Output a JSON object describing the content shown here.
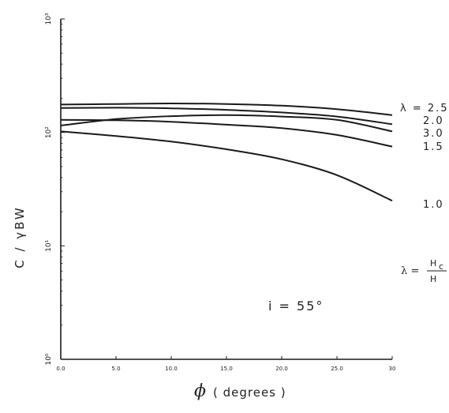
{
  "chart_data": {
    "type": "line",
    "xlabel_symbol": "ϕ",
    "xlabel_text": "( degrees )",
    "ylabel": "C / γBW",
    "y_scale": "log",
    "ylim": [
      1,
      1000
    ],
    "xlim": [
      0,
      30
    ],
    "x_ticks": [
      0,
      5,
      10,
      15,
      20,
      25,
      30
    ],
    "x_tick_labels": [
      "0.0",
      "5.0",
      "10.0",
      "15.0",
      "20.0",
      "25.0",
      "30"
    ],
    "y_ticks": [
      1,
      10,
      100,
      1000
    ],
    "y_tick_labels": [
      "10⁰",
      "10¹",
      "10²",
      "10³"
    ],
    "grid": false,
    "series": [
      {
        "name": "2.5",
        "x": [
          0,
          5,
          10,
          15,
          20,
          25,
          30
        ],
        "y": [
          176,
          178,
          180,
          178,
          172,
          160,
          142
        ]
      },
      {
        "name": "2.0",
        "x": [
          0,
          5,
          10,
          15,
          20,
          25,
          30
        ],
        "y": [
          164,
          165,
          163,
          158,
          150,
          138,
          118
        ]
      },
      {
        "name": "3.0",
        "x": [
          0,
          5,
          10,
          15,
          20,
          25,
          30
        ],
        "y": [
          115,
          131,
          139,
          142,
          138,
          129,
          102
        ]
      },
      {
        "name": "1.5",
        "x": [
          0,
          5,
          10,
          15,
          20,
          25,
          30
        ],
        "y": [
          129,
          128,
          124,
          117,
          109,
          95,
          75
        ]
      },
      {
        "name": "1.0",
        "x": [
          0,
          5,
          10,
          15,
          20,
          25,
          30
        ],
        "y": [
          102,
          93,
          83,
          71,
          58,
          42,
          25
        ]
      }
    ],
    "series_label_prefix": "λ = ",
    "annotations": {
      "lambda_def_lhs": "λ  =",
      "lambda_def_num": "H",
      "lambda_def_num_sub": "c",
      "lambda_def_den": "H",
      "inclination": "i  =  55°"
    }
  }
}
